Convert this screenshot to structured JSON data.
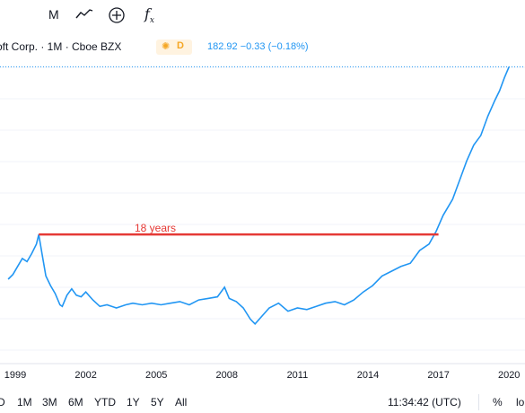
{
  "toolbar": {
    "interval_label": "M",
    "fx_label": "f",
    "fx_sub": "x"
  },
  "legend": {
    "symbol": "oft Corp. · 1M · Cboe BZX",
    "session_badge": "D",
    "price_line": "182.92  −0.33 (−0.18%)"
  },
  "annotation": {
    "text": "18 years",
    "color": "#e53935"
  },
  "colors": {
    "series": "#2196f3",
    "annotation_line": "#e53935",
    "price_line_dotted": "#2196f3"
  },
  "bottom": {
    "ranges": [
      "D",
      "1M",
      "3M",
      "6M",
      "YTD",
      "1Y",
      "5Y",
      "All"
    ],
    "time": "11:34:42 (UTC)",
    "percent_label": "%",
    "log_label": "lo"
  },
  "chart_data": {
    "type": "line",
    "x_tick_labels": [
      "1999",
      "2002",
      "2005",
      "2008",
      "2011",
      "2014",
      "2017",
      "2020"
    ],
    "last_value": 182.92,
    "series": [
      {
        "points": [
          [
            1998.7,
            50
          ],
          [
            1998.9,
            53
          ],
          [
            1999.1,
            58
          ],
          [
            1999.3,
            63
          ],
          [
            1999.5,
            61
          ],
          [
            1999.7,
            66
          ],
          [
            1999.9,
            72
          ],
          [
            2000.0,
            78
          ],
          [
            2000.15,
            65
          ],
          [
            2000.3,
            52
          ],
          [
            2000.5,
            46
          ],
          [
            2000.7,
            41
          ],
          [
            2000.9,
            34
          ],
          [
            2001.0,
            33
          ],
          [
            2001.2,
            40
          ],
          [
            2001.4,
            44
          ],
          [
            2001.6,
            40
          ],
          [
            2001.8,
            39
          ],
          [
            2002.0,
            42
          ],
          [
            2002.3,
            37
          ],
          [
            2002.6,
            33
          ],
          [
            2002.9,
            34
          ],
          [
            2003.3,
            32
          ],
          [
            2003.7,
            34
          ],
          [
            2004.0,
            35
          ],
          [
            2004.4,
            34
          ],
          [
            2004.8,
            35
          ],
          [
            2005.2,
            34
          ],
          [
            2005.6,
            35
          ],
          [
            2006.0,
            36
          ],
          [
            2006.4,
            34
          ],
          [
            2006.8,
            37
          ],
          [
            2007.2,
            38
          ],
          [
            2007.6,
            39
          ],
          [
            2007.9,
            45
          ],
          [
            2008.1,
            38
          ],
          [
            2008.4,
            36
          ],
          [
            2008.7,
            32
          ],
          [
            2009.0,
            25
          ],
          [
            2009.2,
            22
          ],
          [
            2009.5,
            27
          ],
          [
            2009.8,
            32
          ],
          [
            2010.2,
            35
          ],
          [
            2010.6,
            30
          ],
          [
            2011.0,
            32
          ],
          [
            2011.4,
            31
          ],
          [
            2011.8,
            33
          ],
          [
            2012.2,
            35
          ],
          [
            2012.6,
            36
          ],
          [
            2013.0,
            34
          ],
          [
            2013.4,
            37
          ],
          [
            2013.8,
            42
          ],
          [
            2014.2,
            46
          ],
          [
            2014.6,
            52
          ],
          [
            2015.0,
            55
          ],
          [
            2015.4,
            58
          ],
          [
            2015.8,
            60
          ],
          [
            2016.2,
            68
          ],
          [
            2016.6,
            72
          ],
          [
            2016.9,
            80
          ],
          [
            2017.2,
            90
          ],
          [
            2017.6,
            100
          ],
          [
            2017.9,
            112
          ],
          [
            2018.2,
            124
          ],
          [
            2018.5,
            134
          ],
          [
            2018.8,
            140
          ],
          [
            2019.1,
            152
          ],
          [
            2019.4,
            162
          ],
          [
            2019.6,
            168
          ],
          [
            2019.8,
            176
          ],
          [
            2020.0,
            182.92
          ]
        ]
      }
    ],
    "annotation": {
      "label": "18 years",
      "from_year": 2000.0,
      "to_year": 2017.0,
      "value": 78
    }
  }
}
